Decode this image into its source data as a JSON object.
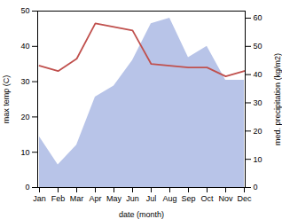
{
  "chart_data": {
    "type": "line",
    "categories": [
      "Jan",
      "Feb",
      "Mar",
      "Apr",
      "May",
      "Jun",
      "Jul",
      "Aug",
      "Sep",
      "Oct",
      "Nov",
      "Dec"
    ],
    "xlabel": "date (month)",
    "ylabel": "max temp (C)",
    "y2label": "med. precipitation (kg/m2)",
    "series": [
      {
        "type": "area",
        "axis": "y2",
        "color": "#b8c4e8",
        "values": [
          18.0,
          8.0,
          15.0,
          32.0,
          36.0,
          45.0,
          58.0,
          60.0,
          46.0,
          50.0,
          38.0,
          38.0
        ]
      },
      {
        "type": "line",
        "axis": "y",
        "color": "#c0504d",
        "values": [
          34.5,
          33.0,
          36.5,
          46.5,
          45.5,
          44.5,
          35.0,
          34.5,
          34.0,
          34.0,
          31.5,
          33.0
        ]
      }
    ],
    "ylim": [
      0,
      50
    ],
    "yticks": [
      0,
      10,
      20,
      30,
      40,
      50
    ],
    "y2lim": [
      0,
      62.5
    ],
    "y2ticks": [
      0,
      10,
      20,
      30,
      40,
      50,
      60
    ]
  }
}
